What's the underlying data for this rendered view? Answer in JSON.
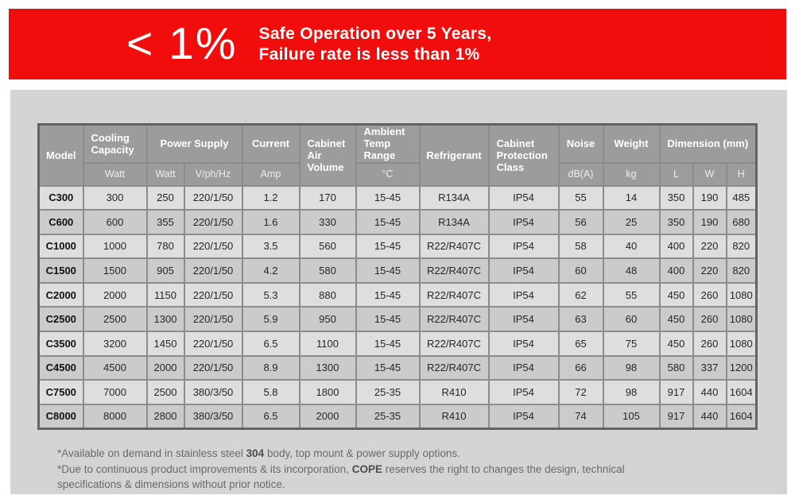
{
  "colors": {
    "banner_red": "#F20D0D",
    "panel_gray": "#D4D4D4",
    "header_gray": "#9C9C9C",
    "row_light": "#DEDEDE",
    "row_dark": "#CBCBCB"
  },
  "banner": {
    "headline": "< 1%",
    "slogan_line1": "Safe Operation over 5 Years,",
    "slogan_line2": "Failure rate is less than 1%"
  },
  "table": {
    "header": {
      "model": "Model",
      "cooling_capacity": "Cooling Capacity",
      "cooling_capacity_unit": "Watt",
      "power_supply": "Power Supply",
      "power_supply_watt": "Watt",
      "power_supply_vphhz": "V/ph/Hz",
      "current": "Current",
      "current_unit": "Amp",
      "cabinet_air_volume": "Cabinet Air Volume",
      "ambient_temp_range": "Ambient Temp Range",
      "ambient_temp_unit": "°C",
      "refrigerant": "Refrigerant",
      "cabinet_protection_class": "Cabinet Protection Class",
      "noise": "Noise",
      "noise_unit": "dB(A)",
      "weight": "Weight",
      "weight_unit": "kg",
      "dimension": "Dimension (mm)",
      "dim_l": "L",
      "dim_w": "W",
      "dim_h": "H"
    },
    "rows": [
      {
        "model": "C300",
        "cells": [
          "300",
          "250",
          "220/1/50",
          "1.2",
          "170",
          "15-45",
          "R134A",
          "IP54",
          "55",
          "14",
          "350",
          "190",
          "485"
        ]
      },
      {
        "model": "C600",
        "cells": [
          "600",
          "355",
          "220/1/50",
          "1.6",
          "330",
          "15-45",
          "R134A",
          "IP54",
          "56",
          "25",
          "350",
          "190",
          "680"
        ]
      },
      {
        "model": "C1000",
        "cells": [
          "1000",
          "780",
          "220/1/50",
          "3.5",
          "560",
          "15-45",
          "R22/R407C",
          "IP54",
          "58",
          "40",
          "400",
          "220",
          "820"
        ]
      },
      {
        "model": "C1500",
        "cells": [
          "1500",
          "905",
          "220/1/50",
          "4.2",
          "580",
          "15-45",
          "R22/R407C",
          "IP54",
          "60",
          "48",
          "400",
          "220",
          "820"
        ]
      },
      {
        "model": "C2000",
        "cells": [
          "2000",
          "1150",
          "220/1/50",
          "5.3",
          "880",
          "15-45",
          "R22/R407C",
          "IP54",
          "62",
          "55",
          "450",
          "260",
          "1080"
        ]
      },
      {
        "model": "C2500",
        "cells": [
          "2500",
          "1300",
          "220/1/50",
          "5.9",
          "950",
          "15-45",
          "R22/R407C",
          "IP54",
          "63",
          "60",
          "450",
          "260",
          "1080"
        ]
      },
      {
        "model": "C3500",
        "cells": [
          "3200",
          "1450",
          "220/1/50",
          "6.5",
          "1100",
          "15-45",
          "R22/R407C",
          "IP54",
          "65",
          "75",
          "450",
          "260",
          "1080"
        ]
      },
      {
        "model": "C4500",
        "cells": [
          "4500",
          "2000",
          "220/1/50",
          "8.9",
          "1300",
          "15-45",
          "R22/R407C",
          "IP54",
          "66",
          "98",
          "580",
          "337",
          "1200"
        ]
      },
      {
        "model": "C7500",
        "cells": [
          "7000",
          "2500",
          "380/3/50",
          "5.8",
          "1800",
          "25-35",
          "R410",
          "IP54",
          "72",
          "98",
          "917",
          "440",
          "1604"
        ]
      },
      {
        "model": "C8000",
        "cells": [
          "8000",
          "2800",
          "380/3/50",
          "6.5",
          "2000",
          "25-35",
          "R410",
          "IP54",
          "74",
          "105",
          "917",
          "440",
          "1604"
        ]
      }
    ]
  },
  "footnotes": {
    "line1": {
      "prefix": "*Available on demand in stainless steel ",
      "bold": "304",
      "suffix": " body, top mount & power supply options."
    },
    "line2": {
      "prefix": "*Due to continuous product improvements & its incorporation, ",
      "bold": "COPE",
      "suffix": " reserves the right to changes the design, technical specifications & dimensions without prior notice."
    }
  }
}
